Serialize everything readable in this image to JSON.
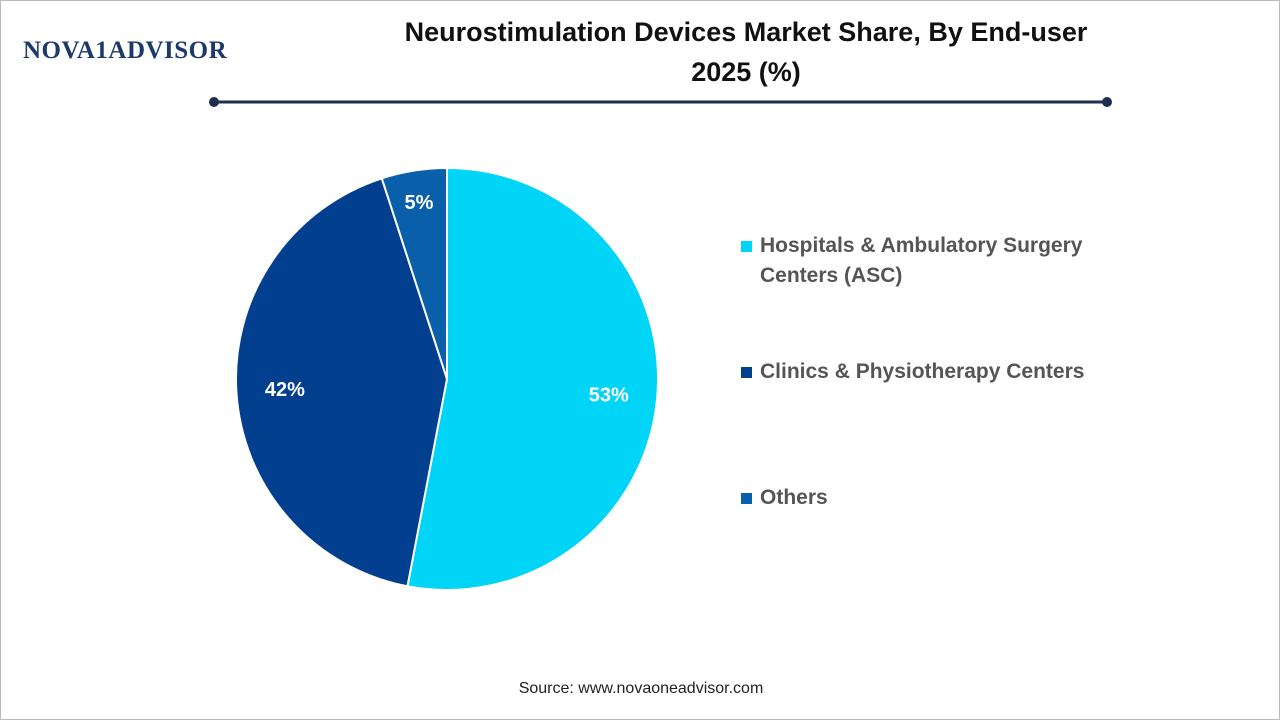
{
  "brand": "NOVA1ADVISOR",
  "source": "Source: www.novaoneadvisor.com",
  "chart_data": {
    "type": "pie",
    "title": "Neurostimulation Devices Market Share, By End-user",
    "subtitle": "2025 (%)",
    "categories": [
      "Hospitals & Ambulatory Surgery Centers (ASC)",
      "Clinics & Physiotherapy Centers",
      "Others"
    ],
    "values": [
      53,
      42,
      5
    ],
    "value_labels": [
      "53%",
      "42%",
      "5%"
    ],
    "colors": [
      "#00d4f7",
      "#023f8e",
      "#0a5fab"
    ],
    "legend": "right"
  }
}
